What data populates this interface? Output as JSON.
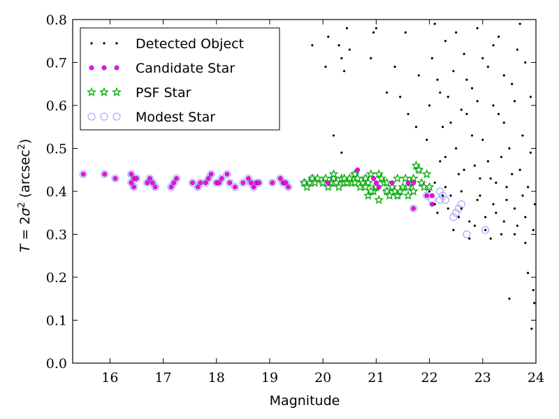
{
  "chart_data": {
    "type": "scatter",
    "xlabel": "Magnitude",
    "ylabel": "T = 2σ² (arcsec²)",
    "ylabel_parts": {
      "var": "T",
      "eq": " = 2",
      "sigma": "σ",
      "sq": "2",
      "unit_open": " (arcsec",
      "unit_close": ")"
    },
    "xlim": [
      15.3,
      24
    ],
    "ylim": [
      0,
      0.8
    ],
    "xticks": [
      "16",
      "17",
      "18",
      "19",
      "20",
      "21",
      "22",
      "23",
      "24"
    ],
    "yticks": [
      "0.0",
      "0.1",
      "0.2",
      "0.3",
      "0.4",
      "0.5",
      "0.6",
      "0.7",
      "0.8"
    ],
    "grid": false,
    "legend_position": "top-left",
    "series": [
      {
        "name": "Detected Object",
        "marker": "dot",
        "color": "#000000",
        "points": [
          [
            19.8,
            0.74
          ],
          [
            20.05,
            0.69
          ],
          [
            20.1,
            0.76
          ],
          [
            20.3,
            0.74
          ],
          [
            20.35,
            0.71
          ],
          [
            20.4,
            0.68
          ],
          [
            20.45,
            0.78
          ],
          [
            20.5,
            0.73
          ],
          [
            20.2,
            0.53
          ],
          [
            20.35,
            0.49
          ],
          [
            20.9,
            0.71
          ],
          [
            20.95,
            0.77
          ],
          [
            21.0,
            0.78
          ],
          [
            21.2,
            0.63
          ],
          [
            21.35,
            0.69
          ],
          [
            21.45,
            0.62
          ],
          [
            21.55,
            0.77
          ],
          [
            21.6,
            0.58
          ],
          [
            21.75,
            0.55
          ],
          [
            21.8,
            0.67
          ],
          [
            21.95,
            0.52
          ],
          [
            22.0,
            0.6
          ],
          [
            22.05,
            0.71
          ],
          [
            22.1,
            0.79
          ],
          [
            22.15,
            0.66
          ],
          [
            22.2,
            0.47
          ],
          [
            22.25,
            0.55
          ],
          [
            22.3,
            0.75
          ],
          [
            22.35,
            0.62
          ],
          [
            22.4,
            0.39
          ],
          [
            22.45,
            0.68
          ],
          [
            22.5,
            0.5
          ],
          [
            22.55,
            0.44
          ],
          [
            22.6,
            0.36
          ],
          [
            22.65,
            0.72
          ],
          [
            22.7,
            0.58
          ],
          [
            22.75,
            0.33
          ],
          [
            22.8,
            0.64
          ],
          [
            22.85,
            0.46
          ],
          [
            22.9,
            0.78
          ],
          [
            22.95,
            0.39
          ],
          [
            23.0,
            0.52
          ],
          [
            23.05,
            0.31
          ],
          [
            23.1,
            0.69
          ],
          [
            23.15,
            0.43
          ],
          [
            23.2,
            0.6
          ],
          [
            23.25,
            0.35
          ],
          [
            23.3,
            0.76
          ],
          [
            23.35,
            0.48
          ],
          [
            23.4,
            0.56
          ],
          [
            23.45,
            0.41
          ],
          [
            23.5,
            0.15
          ],
          [
            23.55,
            0.65
          ],
          [
            23.6,
            0.3
          ],
          [
            23.65,
            0.73
          ],
          [
            23.7,
            0.45
          ],
          [
            23.75,
            0.53
          ],
          [
            23.8,
            0.28
          ],
          [
            23.85,
            0.21
          ],
          [
            23.9,
            0.62
          ],
          [
            23.92,
            0.08
          ],
          [
            23.95,
            0.17
          ],
          [
            23.97,
            0.14
          ],
          [
            23.98,
            0.37
          ],
          [
            22.1,
            0.42
          ],
          [
            22.3,
            0.41
          ],
          [
            22.6,
            0.4
          ],
          [
            22.9,
            0.38
          ],
          [
            23.2,
            0.37
          ],
          [
            23.4,
            0.33
          ],
          [
            23.6,
            0.36
          ],
          [
            23.8,
            0.34
          ],
          [
            22.4,
            0.56
          ],
          [
            22.7,
            0.66
          ],
          [
            23.0,
            0.71
          ],
          [
            23.3,
            0.58
          ],
          [
            23.6,
            0.61
          ],
          [
            23.9,
            0.49
          ],
          [
            22.2,
            0.63
          ],
          [
            22.5,
            0.77
          ],
          [
            22.8,
            0.53
          ],
          [
            23.1,
            0.47
          ],
          [
            23.4,
            0.67
          ],
          [
            23.7,
            0.79
          ],
          [
            22.3,
            0.48
          ],
          [
            22.6,
            0.59
          ],
          [
            22.9,
            0.61
          ],
          [
            23.2,
            0.74
          ],
          [
            23.5,
            0.5
          ],
          [
            23.8,
            0.7
          ],
          [
            22.15,
            0.35
          ],
          [
            22.45,
            0.31
          ],
          [
            22.75,
            0.29
          ],
          [
            23.05,
            0.34
          ],
          [
            23.35,
            0.3
          ],
          [
            23.65,
            0.32
          ],
          [
            23.95,
            0.31
          ],
          [
            22.0,
            0.4
          ],
          [
            22.1,
            0.37
          ],
          [
            22.25,
            0.39
          ],
          [
            22.35,
            0.36
          ],
          [
            22.55,
            0.34
          ],
          [
            22.85,
            0.32
          ],
          [
            23.15,
            0.29
          ],
          [
            23.45,
            0.38
          ],
          [
            23.75,
            0.39
          ],
          [
            22.65,
            0.45
          ],
          [
            22.95,
            0.43
          ],
          [
            23.25,
            0.42
          ],
          [
            23.55,
            0.44
          ],
          [
            23.85,
            0.41
          ]
        ]
      },
      {
        "name": "Candidate Star",
        "marker": "circle-small",
        "color": "#ff00ff",
        "points": [
          [
            15.5,
            0.44
          ],
          [
            15.9,
            0.44
          ],
          [
            16.1,
            0.43
          ],
          [
            16.4,
            0.44
          ],
          [
            16.45,
            0.43
          ],
          [
            16.5,
            0.43
          ],
          [
            16.4,
            0.42
          ],
          [
            16.45,
            0.41
          ],
          [
            16.7,
            0.42
          ],
          [
            16.75,
            0.43
          ],
          [
            16.8,
            0.42
          ],
          [
            16.85,
            0.41
          ],
          [
            17.15,
            0.41
          ],
          [
            17.2,
            0.42
          ],
          [
            17.25,
            0.43
          ],
          [
            17.55,
            0.42
          ],
          [
            17.65,
            0.41
          ],
          [
            17.7,
            0.42
          ],
          [
            17.8,
            0.42
          ],
          [
            17.85,
            0.43
          ],
          [
            17.9,
            0.44
          ],
          [
            18.0,
            0.42
          ],
          [
            18.05,
            0.42
          ],
          [
            18.1,
            0.43
          ],
          [
            18.2,
            0.44
          ],
          [
            18.25,
            0.42
          ],
          [
            18.35,
            0.41
          ],
          [
            18.5,
            0.42
          ],
          [
            18.6,
            0.43
          ],
          [
            18.65,
            0.42
          ],
          [
            18.7,
            0.41
          ],
          [
            18.75,
            0.42
          ],
          [
            18.8,
            0.42
          ],
          [
            19.05,
            0.42
          ],
          [
            19.2,
            0.43
          ],
          [
            19.25,
            0.42
          ],
          [
            19.3,
            0.42
          ],
          [
            19.35,
            0.41
          ],
          [
            20.1,
            0.42
          ],
          [
            20.65,
            0.45
          ],
          [
            20.95,
            0.43
          ],
          [
            21.0,
            0.42
          ],
          [
            21.05,
            0.41
          ],
          [
            21.3,
            0.42
          ],
          [
            21.6,
            0.42
          ],
          [
            21.7,
            0.42
          ],
          [
            21.7,
            0.36
          ],
          [
            21.95,
            0.39
          ],
          [
            22.05,
            0.39
          ],
          [
            22.05,
            0.37
          ]
        ]
      },
      {
        "name": "PSF Star",
        "marker": "star",
        "color": "#00aa00",
        "points": [
          [
            19.65,
            0.42
          ],
          [
            19.7,
            0.41
          ],
          [
            19.75,
            0.42
          ],
          [
            19.8,
            0.43
          ],
          [
            19.85,
            0.42
          ],
          [
            19.9,
            0.43
          ],
          [
            20.0,
            0.42
          ],
          [
            20.05,
            0.43
          ],
          [
            20.1,
            0.41
          ],
          [
            20.15,
            0.42
          ],
          [
            20.2,
            0.43
          ],
          [
            20.25,
            0.42
          ],
          [
            20.3,
            0.41
          ],
          [
            20.35,
            0.43
          ],
          [
            20.4,
            0.42
          ],
          [
            20.45,
            0.42
          ],
          [
            20.5,
            0.43
          ],
          [
            20.55,
            0.42
          ],
          [
            20.6,
            0.44
          ],
          [
            20.65,
            0.43
          ],
          [
            20.7,
            0.41
          ],
          [
            20.75,
            0.42
          ],
          [
            20.8,
            0.43
          ],
          [
            20.85,
            0.42
          ],
          [
            20.9,
            0.44
          ],
          [
            20.95,
            0.4
          ],
          [
            21.0,
            0.41
          ],
          [
            21.05,
            0.44
          ],
          [
            21.1,
            0.43
          ],
          [
            21.15,
            0.42
          ],
          [
            21.2,
            0.4
          ],
          [
            21.25,
            0.39
          ],
          [
            21.3,
            0.41
          ],
          [
            21.35,
            0.4
          ],
          [
            21.4,
            0.39
          ],
          [
            21.45,
            0.4
          ],
          [
            21.5,
            0.41
          ],
          [
            21.55,
            0.43
          ],
          [
            21.6,
            0.41
          ],
          [
            21.65,
            0.42
          ],
          [
            21.7,
            0.4
          ],
          [
            21.75,
            0.46
          ],
          [
            21.8,
            0.45
          ],
          [
            21.85,
            0.42
          ],
          [
            21.9,
            0.41
          ],
          [
            21.95,
            0.44
          ],
          [
            22.0,
            0.41
          ],
          [
            20.85,
            0.39
          ],
          [
            20.9,
            0.4
          ],
          [
            21.05,
            0.38
          ],
          [
            21.2,
            0.42
          ],
          [
            21.4,
            0.43
          ],
          [
            21.6,
            0.39
          ],
          [
            21.7,
            0.43
          ],
          [
            20.2,
            0.44
          ],
          [
            20.4,
            0.43
          ],
          [
            20.6,
            0.42
          ],
          [
            20.8,
            0.41
          ]
        ]
      },
      {
        "name": "Modest Star",
        "marker": "circle-open",
        "color": "#aaaaff",
        "points": [
          [
            15.5,
            0.44
          ],
          [
            15.9,
            0.44
          ],
          [
            16.1,
            0.43
          ],
          [
            16.4,
            0.44
          ],
          [
            16.45,
            0.43
          ],
          [
            16.5,
            0.43
          ],
          [
            16.4,
            0.42
          ],
          [
            16.45,
            0.41
          ],
          [
            16.7,
            0.42
          ],
          [
            16.75,
            0.43
          ],
          [
            16.8,
            0.42
          ],
          [
            16.85,
            0.41
          ],
          [
            17.15,
            0.41
          ],
          [
            17.2,
            0.42
          ],
          [
            17.25,
            0.43
          ],
          [
            17.55,
            0.42
          ],
          [
            17.65,
            0.41
          ],
          [
            17.7,
            0.42
          ],
          [
            17.8,
            0.42
          ],
          [
            17.85,
            0.43
          ],
          [
            17.9,
            0.44
          ],
          [
            18.0,
            0.42
          ],
          [
            18.05,
            0.42
          ],
          [
            18.1,
            0.43
          ],
          [
            18.2,
            0.44
          ],
          [
            18.25,
            0.42
          ],
          [
            18.35,
            0.41
          ],
          [
            18.5,
            0.42
          ],
          [
            18.6,
            0.43
          ],
          [
            18.65,
            0.42
          ],
          [
            18.7,
            0.41
          ],
          [
            18.75,
            0.42
          ],
          [
            18.8,
            0.42
          ],
          [
            19.05,
            0.42
          ],
          [
            19.2,
            0.43
          ],
          [
            19.25,
            0.42
          ],
          [
            19.3,
            0.42
          ],
          [
            19.35,
            0.41
          ],
          [
            19.65,
            0.42
          ],
          [
            19.8,
            0.43
          ],
          [
            20.0,
            0.42
          ],
          [
            20.2,
            0.43
          ],
          [
            20.4,
            0.42
          ],
          [
            20.6,
            0.44
          ],
          [
            20.8,
            0.43
          ],
          [
            21.0,
            0.41
          ],
          [
            21.2,
            0.4
          ],
          [
            21.4,
            0.39
          ],
          [
            21.6,
            0.41
          ],
          [
            21.8,
            0.45
          ],
          [
            21.7,
            0.36
          ],
          [
            21.95,
            0.39
          ],
          [
            22.05,
            0.38
          ],
          [
            22.2,
            0.4
          ],
          [
            22.25,
            0.39
          ],
          [
            22.3,
            0.38
          ],
          [
            22.45,
            0.34
          ],
          [
            22.55,
            0.36
          ],
          [
            22.6,
            0.37
          ],
          [
            22.7,
            0.3
          ],
          [
            23.05,
            0.31
          ],
          [
            22.2,
            0.38
          ],
          [
            22.5,
            0.35
          ]
        ]
      }
    ]
  }
}
